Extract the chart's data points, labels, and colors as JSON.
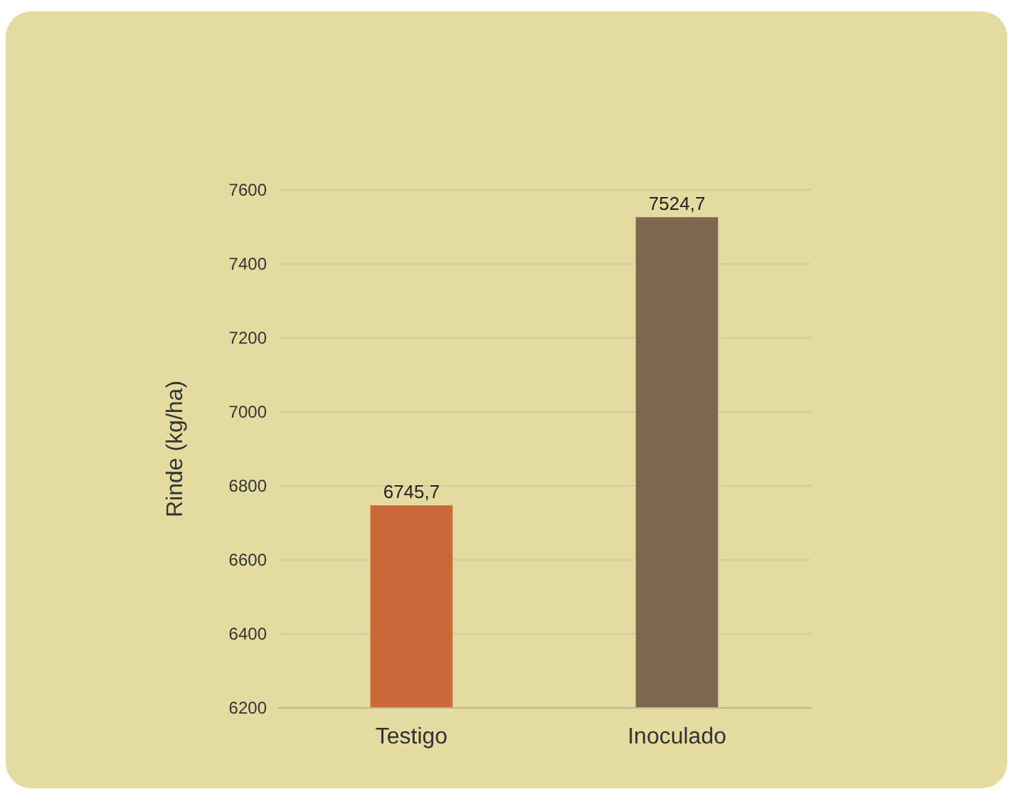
{
  "chart_data": {
    "type": "bar",
    "ylabel": "Rinde (kg/ha)",
    "categories": [
      "Testigo",
      "Inoculado"
    ],
    "values": [
      6745.7,
      7524.7
    ],
    "colors": [
      "#c96a38",
      "#7e6650"
    ],
    "value_labels": [
      "6745,7",
      "7524,7"
    ],
    "ylim": [
      6200,
      7600
    ],
    "yticks": [
      6200,
      6400,
      6600,
      6800,
      7000,
      7200,
      7400,
      7600
    ],
    "grid": "y"
  }
}
